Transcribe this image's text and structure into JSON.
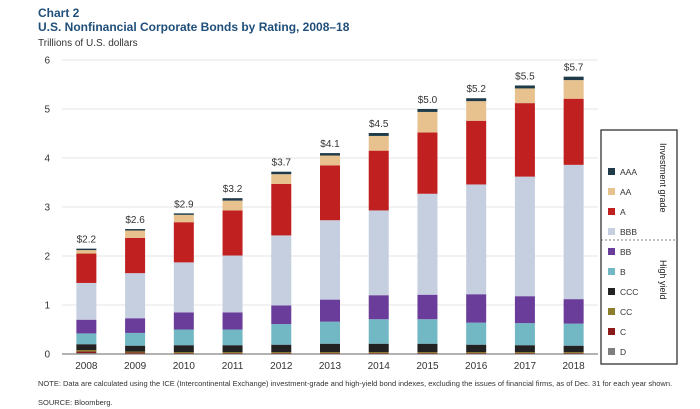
{
  "header": {
    "chart_number": "Chart 2",
    "title": "U.S. Nonfinancial Corporate Bonds by Rating, 2008–18",
    "y_unit": "Trillions of U.S. dollars"
  },
  "footer": {
    "note": "NOTE: Data are calculated using the ICE (Intercontinental Exchange) investment-grade and high-yield bond indexes, excluding the issues of financial firms, as of Dec. 31 for each year shown.",
    "source": "SOURCE: Bloomberg."
  },
  "legend": {
    "group_investment": "Investment grade",
    "group_high_yield": "High yield"
  },
  "chart_data": {
    "type": "bar",
    "stacked": true,
    "title": "U.S. Nonfinancial Corporate Bonds by Rating, 2008–18",
    "ylabel": "Trillions of U.S. dollars",
    "ylim": [
      0,
      6
    ],
    "yticks": [
      0,
      1,
      2,
      3,
      4,
      5,
      6
    ],
    "categories": [
      "2008",
      "2009",
      "2010",
      "2011",
      "2012",
      "2013",
      "2014",
      "2015",
      "2016",
      "2017",
      "2018"
    ],
    "totals": [
      "$2.2",
      "$2.6",
      "$2.9",
      "$3.2",
      "$3.7",
      "$4.1",
      "$4.5",
      "$5.0",
      "$5.2",
      "$5.5",
      "$5.7"
    ],
    "series": [
      {
        "name": "D",
        "color": "#7f7f7f",
        "values": [
          0.02,
          0.01,
          0.01,
          0.01,
          0.01,
          0.01,
          0.01,
          0.01,
          0.01,
          0.01,
          0.01
        ]
      },
      {
        "name": "C",
        "color": "#8b1a1a",
        "values": [
          0.03,
          0.02,
          0.01,
          0.01,
          0.01,
          0.01,
          0.01,
          0.01,
          0.01,
          0.01,
          0.01
        ]
      },
      {
        "name": "CC",
        "color": "#8b7d2a",
        "values": [
          0.03,
          0.02,
          0.02,
          0.02,
          0.02,
          0.02,
          0.02,
          0.02,
          0.02,
          0.02,
          0.02
        ]
      },
      {
        "name": "CCC",
        "color": "#222222",
        "values": [
          0.12,
          0.12,
          0.14,
          0.14,
          0.15,
          0.17,
          0.17,
          0.17,
          0.15,
          0.14,
          0.13
        ]
      },
      {
        "name": "B",
        "color": "#72b8c4",
        "values": [
          0.22,
          0.26,
          0.32,
          0.32,
          0.42,
          0.45,
          0.5,
          0.5,
          0.45,
          0.45,
          0.45
        ]
      },
      {
        "name": "BB",
        "color": "#6a3d9a",
        "values": [
          0.28,
          0.3,
          0.35,
          0.35,
          0.38,
          0.45,
          0.49,
          0.5,
          0.58,
          0.55,
          0.5
        ]
      },
      {
        "name": "BBB",
        "color": "#c5cfe0",
        "values": [
          0.75,
          0.92,
          1.02,
          1.16,
          1.43,
          1.62,
          1.73,
          2.06,
          2.24,
          2.44,
          2.74
        ]
      },
      {
        "name": "A",
        "color": "#c0201f",
        "values": [
          0.6,
          0.72,
          0.82,
          0.92,
          1.05,
          1.12,
          1.22,
          1.25,
          1.3,
          1.5,
          1.35
        ]
      },
      {
        "name": "AA",
        "color": "#e8c28e",
        "values": [
          0.07,
          0.15,
          0.15,
          0.2,
          0.2,
          0.2,
          0.3,
          0.42,
          0.4,
          0.3,
          0.38
        ]
      },
      {
        "name": "AAA",
        "color": "#1f3a48",
        "values": [
          0.03,
          0.03,
          0.03,
          0.05,
          0.05,
          0.05,
          0.06,
          0.06,
          0.06,
          0.06,
          0.07
        ]
      }
    ]
  }
}
